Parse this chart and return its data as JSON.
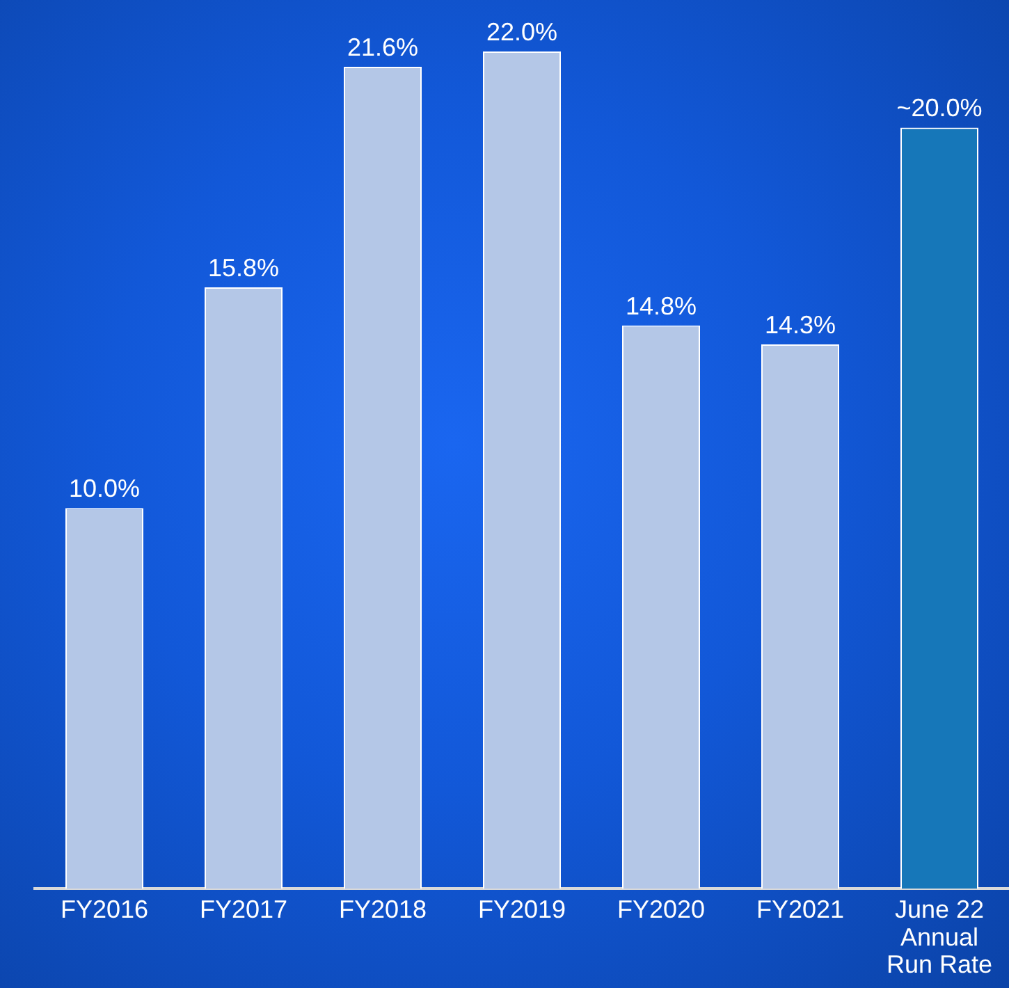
{
  "chart_data": {
    "type": "bar",
    "categories": [
      "FY2016",
      "FY2017",
      "FY2018",
      "FY2019",
      "FY2020",
      "FY2021",
      "June 22 Annual Run Rate"
    ],
    "values": [
      10.0,
      15.8,
      21.6,
      22.0,
      14.8,
      14.3,
      20.0
    ],
    "colors": [
      "#b4c7e7",
      "#b4c7e7",
      "#b4c7e7",
      "#b4c7e7",
      "#b4c7e7",
      "#b4c7e7",
      "#1677b9"
    ],
    "value_labels": [
      "10.0%",
      "15.8%",
      "21.6%",
      "22.0%",
      "14.8%",
      "14.3%",
      "~20.0%"
    ],
    "grid": false,
    "legend": false,
    "tick_labels": "x"
  }
}
